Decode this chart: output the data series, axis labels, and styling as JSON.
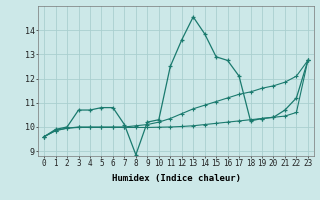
{
  "line1_x": [
    0,
    1,
    2,
    3,
    4,
    5,
    6,
    7,
    8,
    9,
    10,
    11,
    12,
    13,
    14,
    15,
    16,
    17,
    18,
    19,
    20,
    21,
    22,
    23
  ],
  "line1_y": [
    9.6,
    9.9,
    10.0,
    10.7,
    10.7,
    10.8,
    10.8,
    10.1,
    8.85,
    10.2,
    10.3,
    12.5,
    13.6,
    14.55,
    13.85,
    12.9,
    12.75,
    12.1,
    10.25,
    10.35,
    10.4,
    10.7,
    11.2,
    12.75
  ],
  "line2_x": [
    0,
    1,
    2,
    3,
    4,
    5,
    6,
    7,
    8,
    9,
    10,
    11,
    12,
    13,
    14,
    15,
    16,
    17,
    18,
    19,
    20,
    21,
    22,
    23
  ],
  "line2_y": [
    9.6,
    9.85,
    9.95,
    10.0,
    10.0,
    10.0,
    10.0,
    10.0,
    10.05,
    10.1,
    10.2,
    10.35,
    10.55,
    10.75,
    10.9,
    11.05,
    11.2,
    11.35,
    11.45,
    11.6,
    11.7,
    11.85,
    12.1,
    12.75
  ],
  "line3_x": [
    0,
    1,
    2,
    3,
    4,
    5,
    6,
    7,
    8,
    9,
    10,
    11,
    12,
    13,
    14,
    15,
    16,
    17,
    18,
    19,
    20,
    21,
    22,
    23
  ],
  "line3_y": [
    9.6,
    9.85,
    9.95,
    9.98,
    9.98,
    9.98,
    9.98,
    9.98,
    9.98,
    9.98,
    9.99,
    10.0,
    10.02,
    10.05,
    10.1,
    10.15,
    10.2,
    10.25,
    10.3,
    10.35,
    10.4,
    10.45,
    10.6,
    12.75
  ],
  "color": "#1a7a6e",
  "bg_color": "#cce8e8",
  "grid_color": "#aacfcf",
  "xlabel": "Humidex (Indice chaleur)",
  "ylim": [
    8.8,
    15.0
  ],
  "xlim": [
    -0.5,
    23.5
  ],
  "yticks": [
    9,
    10,
    11,
    12,
    13,
    14
  ],
  "xticks": [
    0,
    1,
    2,
    3,
    4,
    5,
    6,
    7,
    8,
    9,
    10,
    11,
    12,
    13,
    14,
    15,
    16,
    17,
    18,
    19,
    20,
    21,
    22,
    23
  ],
  "xlabel_fontsize": 6.5,
  "tick_fontsize": 5.5,
  "ytick_fontsize": 6.0
}
